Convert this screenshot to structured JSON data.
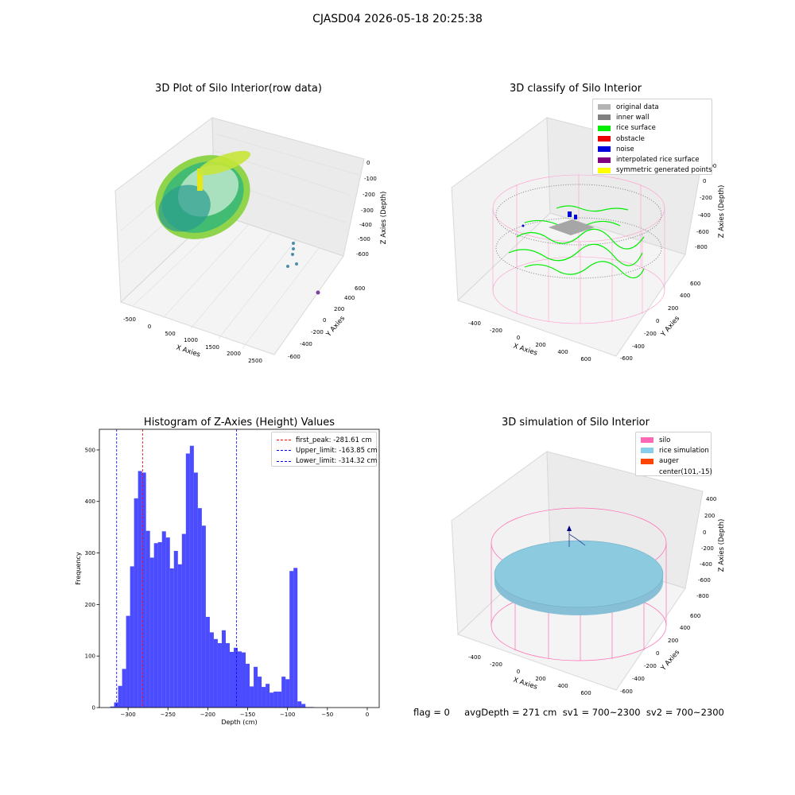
{
  "suptitle": "CJASD04 2026-05-18 20:25:38",
  "panels": {
    "raw": {
      "title": "3D Plot of Silo Interior(row data)",
      "xlabel": "X Axies",
      "ylabel": "Y Axies",
      "zlabel": "Z Axies (Depth)",
      "xticks": [
        "-500",
        "0",
        "500",
        "1000",
        "1500",
        "2000",
        "2500"
      ],
      "yticks": [
        "-600",
        "-400",
        "-200",
        "0",
        "200",
        "400",
        "600"
      ],
      "zticks": [
        "0",
        "-100",
        "-200",
        "-300",
        "-400",
        "-500",
        "-600"
      ]
    },
    "classify": {
      "title": "3D classify of Silo Interior",
      "xlabel": "X Axies",
      "ylabel": "Y Axies",
      "zlabel": "Z Axies (Depth)",
      "xticks": [
        "-400",
        "-200",
        "0",
        "200",
        "400",
        "600"
      ],
      "yticks": [
        "-600",
        "-400",
        "-200",
        "0",
        "200",
        "400",
        "600"
      ],
      "zticks": [
        "200",
        "0",
        "-200",
        "-400",
        "-600",
        "-800"
      ],
      "legend": [
        {
          "label": "original data",
          "color": "#b3b3b3"
        },
        {
          "label": "inner wall",
          "color": "#808080"
        },
        {
          "label": "rice surface",
          "color": "#00ee00"
        },
        {
          "label": "obstacle",
          "color": "#ee0000"
        },
        {
          "label": "noise",
          "color": "#0000dd"
        },
        {
          "label": "interpolated rice surface",
          "color": "#800080"
        },
        {
          "label": "symmetric generated points",
          "color": "#ffff00"
        }
      ]
    },
    "simulation": {
      "title": "3D simulation of Silo Interior",
      "xlabel": "X Axies",
      "ylabel": "Y Axies",
      "zlabel": "Z Axies (Depth)",
      "xticks": [
        "-400",
        "-200",
        "0",
        "200",
        "400",
        "600"
      ],
      "yticks": [
        "-600",
        "-400",
        "-200",
        "0",
        "200",
        "400",
        "600"
      ],
      "zticks": [
        "400",
        "200",
        "0",
        "-200",
        "-400",
        "-600",
        "-800"
      ],
      "legend": [
        {
          "label": "silo",
          "color": "#ff69b4"
        },
        {
          "label": "rice simulation",
          "color": "#87ceeb"
        },
        {
          "label": "auger",
          "color": "#ff4500"
        },
        {
          "label": "center(101,-15)",
          "color": ""
        }
      ]
    }
  },
  "chart_data": {
    "type": "bar",
    "title": "Histogram of Z-Axies (Height) Values",
    "xlabel": "Depth (cm)",
    "ylabel": "Frequency",
    "xlim": [
      -336,
      15
    ],
    "ylim": [
      0,
      540
    ],
    "xticks": [
      -300,
      -250,
      -200,
      -150,
      -100,
      -50,
      0
    ],
    "yticks": [
      0,
      100,
      200,
      300,
      400,
      500
    ],
    "bar_color": "#0000ff",
    "bin_edges": [
      -322.5,
      -317.5,
      -312.5,
      -307.5,
      -302.5,
      -297.5,
      -292.5,
      -287.5,
      -282.5,
      -277.5,
      -272.5,
      -267.5,
      -262.5,
      -257.5,
      -252.5,
      -247.5,
      -242.5,
      -237.5,
      -232.5,
      -227.5,
      -222.5,
      -217.5,
      -212.5,
      -207.5,
      -202.5,
      -197.5,
      -192.5,
      -187.5,
      -182.5,
      -177.5,
      -172.5,
      -167.5,
      -162.5,
      -157.5,
      -152.5,
      -147.5,
      -142.5,
      -137.5,
      -132.5,
      -127.5,
      -122.5,
      -117.5,
      -112.5,
      -107.5,
      -102.5,
      -97.5,
      -92.5,
      -87.5,
      -82.5,
      -77.5,
      -72.5,
      -67.5,
      -62.5,
      -57.5,
      -52.5,
      -47.5,
      -42.5,
      -37.5,
      -32.5,
      -27.5,
      -22.5,
      -17.5,
      -12.5,
      -7.5,
      -2.5,
      2.5
    ],
    "values": [
      2,
      10,
      42,
      75,
      178,
      274,
      406,
      459,
      456,
      343,
      291,
      319,
      321,
      342,
      330,
      270,
      304,
      278,
      337,
      493,
      508,
      456,
      387,
      353,
      176,
      146,
      133,
      125,
      150,
      125,
      108,
      116,
      109,
      107,
      85,
      41,
      79,
      60,
      40,
      46,
      29,
      31,
      31,
      60,
      55,
      265,
      271,
      12,
      7,
      1,
      1,
      0,
      0,
      0,
      0,
      0,
      0,
      0,
      0,
      0,
      0,
      0,
      0,
      0,
      0
    ],
    "annotations": [
      {
        "label": "first_peak: -281.61 cm",
        "x": -281.61,
        "color": "#ff0000"
      },
      {
        "label": "Upper_limit: -163.85 cm",
        "x": -163.85,
        "color": "#0000ff"
      },
      {
        "label": "Lower_limit: -314.32 cm",
        "x": -314.32,
        "color": "#0000ff"
      }
    ],
    "legend_position": "top-right"
  },
  "footer": "flag = 0     avgDepth = 271 cm  sv1 = 700~2300  sv2 = 700~2300"
}
